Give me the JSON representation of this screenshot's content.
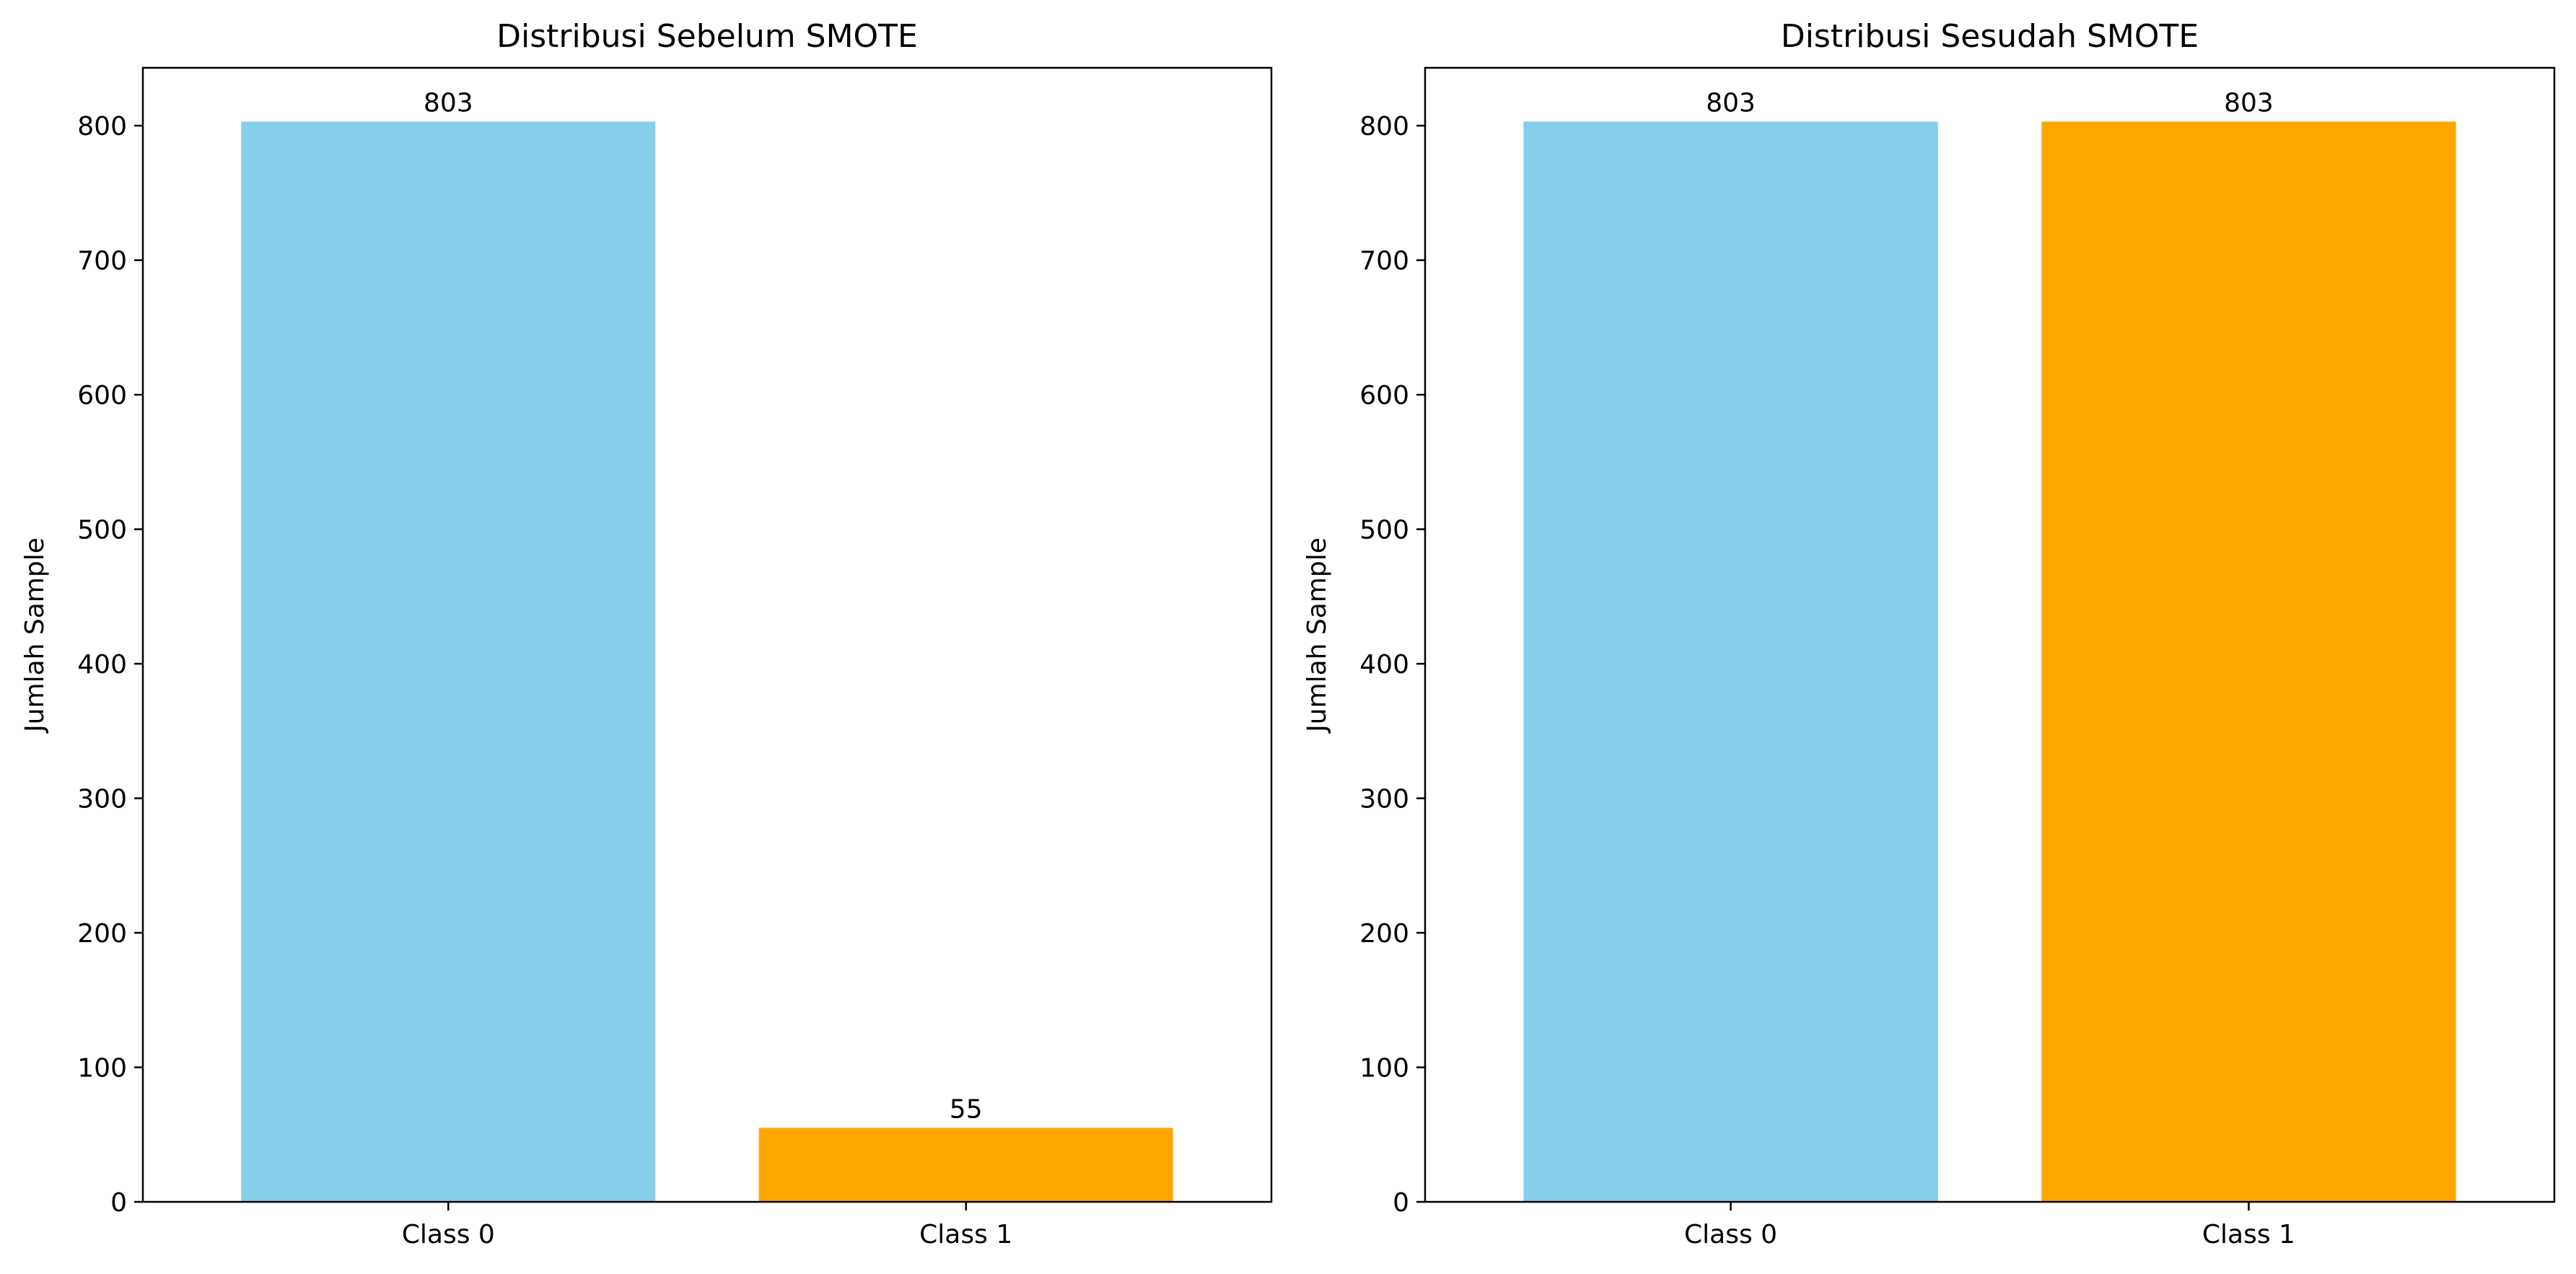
{
  "chart_data": [
    {
      "type": "bar",
      "title": "Distribusi Sebelum SMOTE",
      "xlabel": "",
      "ylabel": "Jumlah Sample",
      "categories": [
        "Class 0",
        "Class 1"
      ],
      "values": [
        803,
        55
      ],
      "data_labels": [
        "803",
        "55"
      ],
      "colors": [
        "#87CEEB",
        "#FFA500"
      ],
      "ylim": [
        0,
        843
      ],
      "yticks": [
        0,
        100,
        200,
        300,
        400,
        500,
        600,
        700,
        800
      ],
      "grid": false
    },
    {
      "type": "bar",
      "title": "Distribusi Sesudah SMOTE",
      "xlabel": "",
      "ylabel": "Jumlah Sample",
      "categories": [
        "Class 0",
        "Class 1"
      ],
      "values": [
        803,
        803
      ],
      "data_labels": [
        "803",
        "803"
      ],
      "colors": [
        "#87CEEB",
        "#FFA500"
      ],
      "ylim": [
        0,
        843
      ],
      "yticks": [
        0,
        100,
        200,
        300,
        400,
        500,
        600,
        700,
        800
      ],
      "grid": false
    }
  ]
}
